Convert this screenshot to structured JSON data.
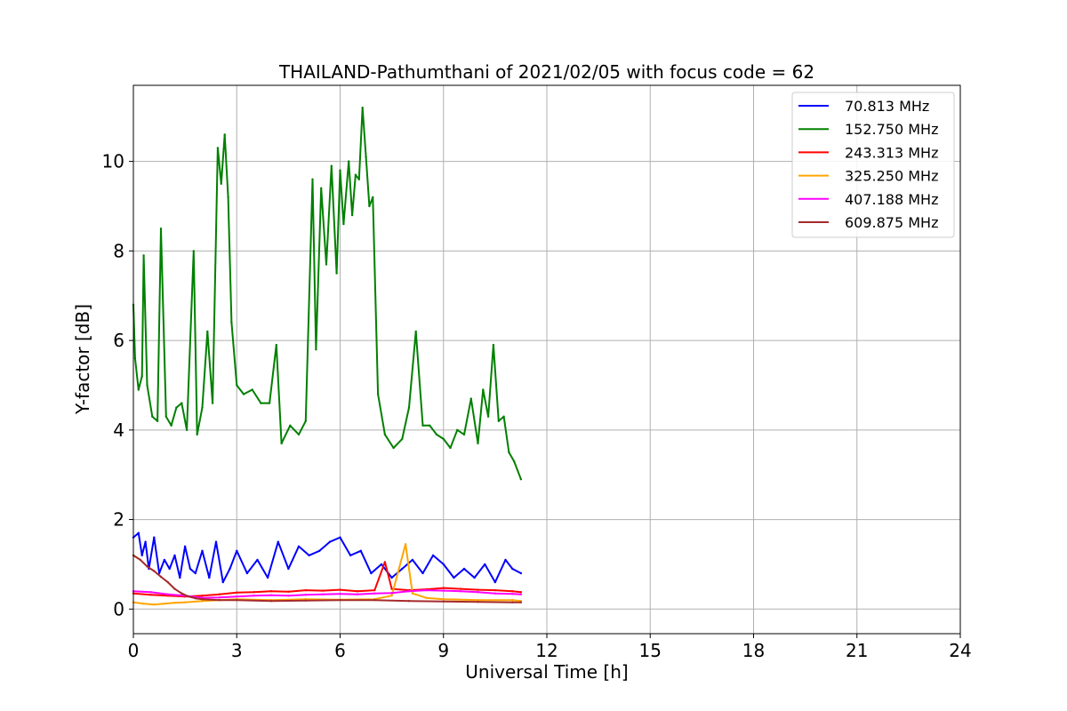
{
  "chart_data": {
    "type": "line",
    "title": "THAILAND-Pathumthani of 2021/02/05 with focus code = 62",
    "xlabel": "Universal Time [h]",
    "ylabel": "Y-factor [dB]",
    "xlim": [
      0,
      24
    ],
    "ylim": [
      -0.55,
      11.7
    ],
    "xticks": [
      "0",
      "3",
      "6",
      "9",
      "12",
      "15",
      "18",
      "21",
      "24"
    ],
    "yticks": [
      "0",
      "2",
      "4",
      "6",
      "8",
      "10"
    ],
    "grid": true,
    "legend_position": "top-right",
    "series": [
      {
        "name": " 70.813 MHz",
        "color": "#0000ff",
        "x": [
          0.0,
          0.15,
          0.25,
          0.35,
          0.45,
          0.6,
          0.75,
          0.9,
          1.05,
          1.2,
          1.35,
          1.5,
          1.65,
          1.8,
          2.0,
          2.2,
          2.4,
          2.6,
          2.8,
          3.0,
          3.3,
          3.6,
          3.9,
          4.2,
          4.5,
          4.8,
          5.1,
          5.4,
          5.7,
          6.0,
          6.3,
          6.6,
          6.9,
          7.2,
          7.5,
          7.8,
          8.1,
          8.4,
          8.7,
          9.0,
          9.3,
          9.6,
          9.9,
          10.2,
          10.5,
          10.8,
          11.0,
          11.25
        ],
        "values": [
          1.6,
          1.7,
          1.2,
          1.5,
          0.9,
          1.6,
          0.8,
          1.1,
          0.9,
          1.2,
          0.7,
          1.4,
          0.9,
          0.8,
          1.3,
          0.7,
          1.5,
          0.6,
          0.9,
          1.3,
          0.8,
          1.1,
          0.7,
          1.5,
          0.9,
          1.4,
          1.2,
          1.3,
          1.5,
          1.6,
          1.2,
          1.3,
          0.8,
          1.0,
          0.7,
          0.9,
          1.1,
          0.8,
          1.2,
          1.0,
          0.7,
          0.9,
          0.7,
          1.0,
          0.6,
          1.1,
          0.9,
          0.8
        ]
      },
      {
        "name": "152.750 MHz",
        "color": "#008000",
        "x": [
          0.0,
          0.05,
          0.15,
          0.25,
          0.3,
          0.4,
          0.55,
          0.7,
          0.8,
          0.95,
          1.1,
          1.25,
          1.4,
          1.55,
          1.75,
          1.85,
          2.0,
          2.15,
          2.3,
          2.45,
          2.55,
          2.65,
          2.75,
          2.85,
          3.0,
          3.2,
          3.45,
          3.7,
          3.95,
          4.15,
          4.3,
          4.55,
          4.8,
          5.0,
          5.2,
          5.3,
          5.45,
          5.6,
          5.75,
          5.9,
          6.0,
          6.1,
          6.25,
          6.35,
          6.45,
          6.55,
          6.65,
          6.75,
          6.85,
          6.95,
          7.1,
          7.3,
          7.55,
          7.8,
          8.0,
          8.2,
          8.4,
          8.6,
          8.8,
          9.0,
          9.2,
          9.4,
          9.6,
          9.8,
          10.0,
          10.15,
          10.3,
          10.45,
          10.6,
          10.75,
          10.9,
          11.05,
          11.25
        ],
        "values": [
          6.8,
          5.6,
          4.9,
          5.2,
          7.9,
          5.0,
          4.3,
          4.2,
          8.5,
          4.3,
          4.1,
          4.5,
          4.6,
          4.0,
          8.0,
          3.9,
          4.5,
          6.2,
          4.6,
          10.3,
          9.5,
          10.6,
          9.2,
          6.4,
          5.0,
          4.8,
          4.9,
          4.6,
          4.6,
          5.9,
          3.7,
          4.1,
          3.9,
          4.2,
          9.6,
          5.8,
          9.4,
          7.7,
          9.9,
          7.5,
          9.8,
          8.6,
          10.0,
          8.8,
          9.7,
          9.6,
          11.2,
          10.1,
          9.0,
          9.2,
          4.8,
          3.9,
          3.6,
          3.8,
          4.5,
          6.2,
          4.1,
          4.1,
          3.9,
          3.8,
          3.6,
          4.0,
          3.9,
          4.7,
          3.7,
          4.9,
          4.3,
          5.9,
          4.2,
          4.3,
          3.5,
          3.3,
          2.9
        ]
      },
      {
        "name": "243.313 MHz",
        "color": "#ff0000",
        "x": [
          0.0,
          0.5,
          1.0,
          1.5,
          2.0,
          2.5,
          3.0,
          3.5,
          4.0,
          4.5,
          5.0,
          5.5,
          6.0,
          6.5,
          7.0,
          7.3,
          7.5,
          8.0,
          8.5,
          9.0,
          9.5,
          10.0,
          10.5,
          11.0,
          11.25
        ],
        "values": [
          0.35,
          0.32,
          0.3,
          0.28,
          0.3,
          0.33,
          0.37,
          0.38,
          0.4,
          0.39,
          0.42,
          0.41,
          0.43,
          0.4,
          0.42,
          1.05,
          0.45,
          0.42,
          0.44,
          0.47,
          0.45,
          0.43,
          0.42,
          0.4,
          0.38
        ]
      },
      {
        "name": "325.250 MHz",
        "color": "#ffa500",
        "x": [
          0.0,
          0.3,
          0.6,
          0.9,
          1.2,
          1.5,
          2.0,
          2.5,
          3.0,
          4.0,
          5.0,
          6.0,
          7.0,
          7.5,
          7.9,
          8.1,
          8.5,
          9.0,
          10.0,
          11.0,
          11.25
        ],
        "values": [
          0.15,
          0.12,
          0.1,
          0.12,
          0.14,
          0.15,
          0.18,
          0.2,
          0.22,
          0.2,
          0.22,
          0.21,
          0.22,
          0.3,
          1.45,
          0.35,
          0.25,
          0.22,
          0.2,
          0.2,
          0.18
        ]
      },
      {
        "name": "407.188 MHz",
        "color": "#ff00ff",
        "x": [
          0.0,
          0.5,
          1.0,
          1.5,
          2.0,
          2.5,
          3.0,
          3.5,
          4.0,
          4.5,
          5.0,
          5.5,
          6.0,
          6.5,
          7.0,
          7.5,
          8.0,
          8.5,
          9.0,
          9.5,
          10.0,
          10.5,
          11.0,
          11.25
        ],
        "values": [
          0.4,
          0.38,
          0.33,
          0.3,
          0.25,
          0.26,
          0.28,
          0.3,
          0.31,
          0.3,
          0.32,
          0.33,
          0.34,
          0.33,
          0.35,
          0.36,
          0.4,
          0.42,
          0.41,
          0.4,
          0.38,
          0.35,
          0.34,
          0.33
        ]
      },
      {
        "name": "609.875 MHz",
        "color": "#a52a2a",
        "x": [
          0.0,
          0.2,
          0.4,
          0.6,
          0.8,
          1.0,
          1.2,
          1.4,
          1.6,
          1.8,
          2.0,
          2.5,
          3.0,
          4.0,
          5.0,
          6.0,
          7.0,
          8.0,
          9.0,
          10.0,
          11.0,
          11.25
        ],
        "values": [
          1.2,
          1.1,
          0.95,
          0.85,
          0.72,
          0.6,
          0.45,
          0.35,
          0.28,
          0.24,
          0.22,
          0.2,
          0.2,
          0.18,
          0.19,
          0.2,
          0.2,
          0.18,
          0.17,
          0.16,
          0.15,
          0.15
        ]
      }
    ]
  }
}
